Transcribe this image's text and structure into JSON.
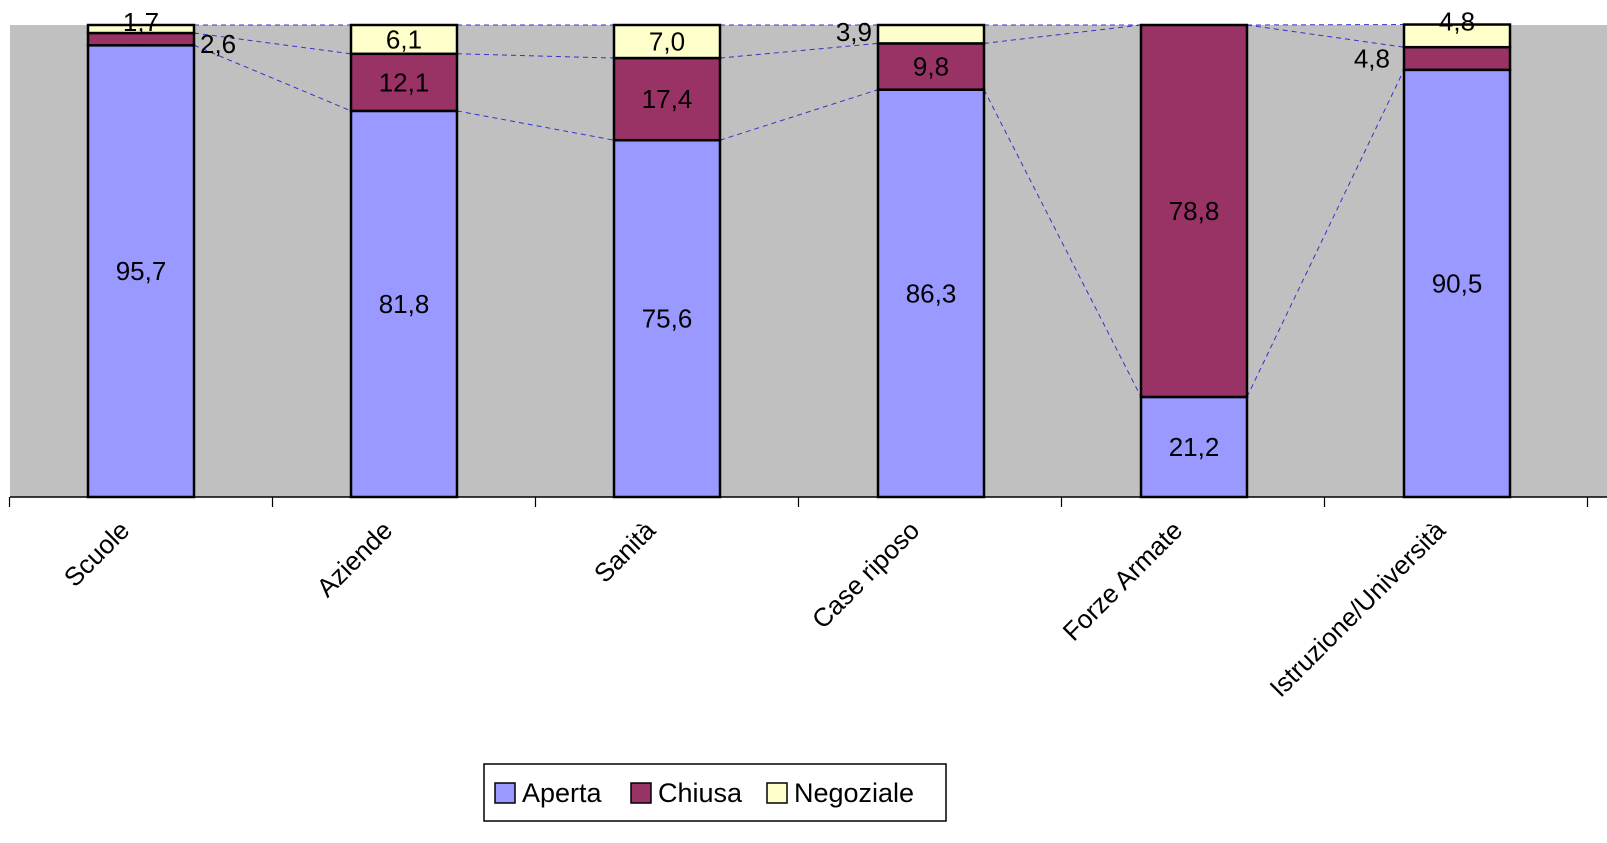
{
  "chart_data": {
    "type": "bar",
    "stacked": true,
    "percent_stacked": true,
    "categories": [
      "Scuole",
      "Aziende",
      "Sanità",
      "Case riposo",
      "Forze Armate",
      "Istruzione/Università"
    ],
    "series": [
      {
        "name": "Aperta",
        "values": [
          95.7,
          81.8,
          75.6,
          86.3,
          21.2,
          90.5
        ],
        "labels": [
          "95,7",
          "81,8",
          "75,6",
          "86,3",
          "21,2",
          "90,5"
        ],
        "color": "#9999FF"
      },
      {
        "name": "Chiusa",
        "values": [
          2.6,
          12.1,
          17.4,
          9.8,
          78.8,
          4.8
        ],
        "labels": [
          "2,6",
          "12,1",
          "17,4",
          "9,8",
          "78,8",
          "4,8"
        ],
        "color": "#993366"
      },
      {
        "name": "Negoziale",
        "values": [
          1.7,
          6.1,
          7.0,
          3.9,
          0,
          4.8
        ],
        "labels": [
          "1,7",
          "6,1",
          "7,0",
          "3,9",
          "",
          "4,8"
        ],
        "color": "#FFFFCC"
      }
    ],
    "ylim": [
      0,
      100
    ],
    "series_lines": true,
    "legend": "bottom",
    "plot_background": "#C0C0C0"
  }
}
